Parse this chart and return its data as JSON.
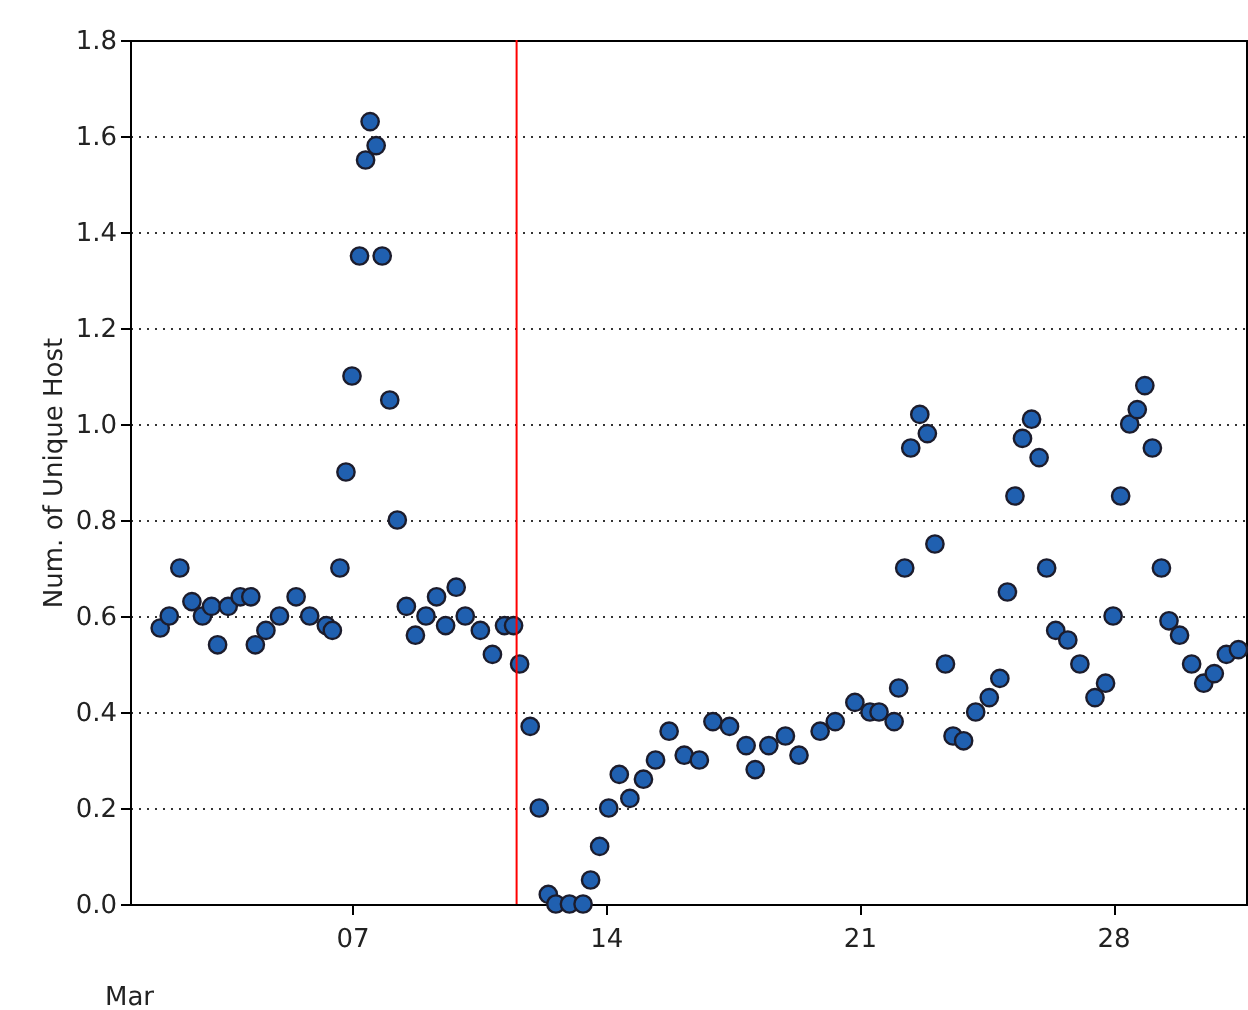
{
  "chart_data": {
    "type": "scatter",
    "xlabel": "Mar",
    "ylabel": "Num. of Unique Host",
    "marker": "circle",
    "grid": "y",
    "xlim": [
      "--02-28T21:00",
      "--03-31T16:00"
    ],
    "xticks": [
      {
        "value": "--03-07",
        "label": "07"
      },
      {
        "value": "--03-14",
        "label": "14"
      },
      {
        "value": "--03-21",
        "label": "21"
      },
      {
        "value": "--03-28",
        "label": "28"
      }
    ],
    "ylim": [
      0,
      1.8
    ],
    "yticks": [
      {
        "value": 0,
        "label": "0.0"
      },
      0.2,
      0.4,
      0.6,
      0.8,
      {
        "value": 1,
        "label": "1.0"
      },
      1.2,
      1.4,
      1.6,
      1.8
    ],
    "ref_lines": [
      {
        "axis": "x",
        "value": "--03-11T13:00",
        "color": "#ff0000"
      }
    ],
    "series": [
      {
        "color": "#2060b0",
        "x": [
          "--03-01T17:00",
          "--03-01T23:00",
          "--03-02T06:00",
          "--03-02T14:00",
          "--03-02T21:00",
          "--03-03T03:00",
          "--03-03T07:00",
          "--03-03T14:00",
          "--03-03T22:00",
          "--03-04T05:00",
          "--03-04T08:00",
          "--03-04T15:00",
          "--03-05T00:00",
          "--03-05T11:00",
          "--03-05T20:00",
          "--03-06T07:00",
          "--03-06T11:00",
          "--03-06T16:00",
          "--03-06T20:00",
          "--03-07T00:00",
          "--03-07T05:00",
          "--03-07T09:00",
          "--03-07T12:00",
          "--03-07T16:00",
          "--03-07T20:00",
          "--03-08T01:00",
          "--03-08T06:00",
          "--03-08T12:00",
          "--03-08T18:00",
          "--03-09T01:00",
          "--03-09T08:00",
          "--03-09T14:00",
          "--03-09T21:00",
          "--03-10T03:00",
          "--03-10T13:00",
          "--03-10T21:00",
          "--03-11T05:00",
          "--03-11T11:00",
          "--03-11T15:00",
          "--03-11T22:00",
          "--03-12T04:00",
          "--03-12T10:00",
          "--03-12T15:00",
          "--03-13T00:00",
          "--03-13T09:00",
          "--03-13T14:00",
          "--03-13T20:00",
          "--03-14T02:00",
          "--03-14T09:00",
          "--03-14T16:00",
          "--03-15T01:00",
          "--03-15T09:00",
          "--03-15T18:00",
          "--03-16T04:00",
          "--03-16T14:00",
          "--03-16T23:00",
          "--03-17T10:00",
          "--03-17T21:00",
          "--03-18T03:00",
          "--03-18T12:00",
          "--03-18T23:00",
          "--03-19T08:00",
          "--03-19T22:00",
          "--03-20T08:00",
          "--03-20T21:00",
          "--03-21T07:00",
          "--03-21T13:00",
          "--03-21T23:00",
          "--03-22T02:00",
          "--03-22T06:00",
          "--03-22T10:00",
          "--03-22T16:00",
          "--03-22T21:00",
          "--03-23T02:00",
          "--03-23T09:00",
          "--03-23T14:00",
          "--03-23T21:00",
          "--03-24T05:00",
          "--03-24T14:00",
          "--03-24T21:00",
          "--03-25T02:00",
          "--03-25T07:00",
          "--03-25T12:00",
          "--03-25T18:00",
          "--03-25T23:00",
          "--03-26T04:00",
          "--03-26T10:00",
          "--03-26T18:00",
          "--03-27T02:00",
          "--03-27T12:00",
          "--03-27T19:00",
          "--03-28T00:00",
          "--03-28T05:00",
          "--03-28T11:00",
          "--03-28T16:00",
          "--03-28T21:00",
          "--03-29T02:00",
          "--03-29T08:00",
          "--03-29T13:00",
          "--03-29T20:00",
          "--03-30T04:00",
          "--03-30T12:00",
          "--03-30T19:00",
          "--03-31T03:00",
          "--03-31T11:00"
        ],
        "values": [
          0.575,
          0.6,
          0.7,
          0.63,
          0.6,
          0.62,
          0.54,
          0.62,
          0.64,
          0.64,
          0.54,
          0.57,
          0.6,
          0.64,
          0.6,
          0.58,
          0.57,
          0.7,
          0.9,
          1.1,
          1.35,
          1.55,
          1.63,
          1.58,
          1.35,
          1.05,
          0.8,
          0.62,
          0.56,
          0.6,
          0.64,
          0.58,
          0.66,
          0.6,
          0.57,
          0.52,
          0.58,
          0.58,
          0.5,
          0.37,
          0.2,
          0.02,
          0,
          0,
          0,
          0.05,
          0.12,
          0.2,
          0.27,
          0.22,
          0.26,
          0.3,
          0.36,
          0.31,
          0.3,
          0.38,
          0.37,
          0.33,
          0.28,
          0.33,
          0.35,
          0.31,
          0.36,
          0.38,
          0.42,
          0.4,
          0.4,
          0.38,
          0.45,
          0.7,
          0.95,
          1.02,
          0.98,
          0.75,
          0.5,
          0.35,
          0.34,
          0.4,
          0.43,
          0.47,
          0.65,
          0.85,
          0.97,
          1.01,
          0.93,
          0.7,
          0.57,
          0.55,
          0.5,
          0.43,
          0.46,
          0.6,
          0.85,
          1,
          1.03,
          1.08,
          0.95,
          0.7,
          0.59,
          0.56,
          0.5,
          0.46,
          0.48,
          0.52,
          0.53
        ]
      }
    ]
  }
}
